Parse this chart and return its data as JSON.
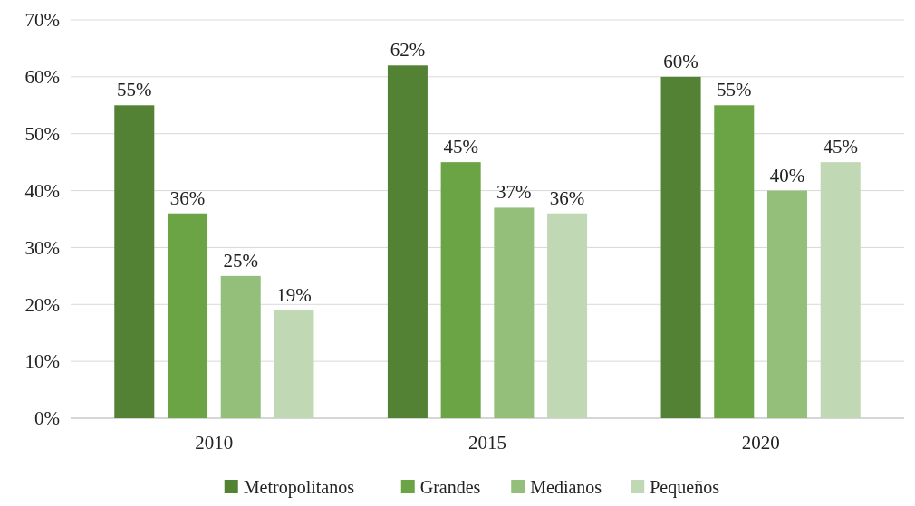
{
  "chart_data": {
    "type": "bar",
    "categories": [
      "2010",
      "2015",
      "2020"
    ],
    "series": [
      {
        "name": "Metropolitanos",
        "color": "#548235",
        "values": [
          55,
          62,
          60
        ],
        "value_labels": [
          "55%",
          "62%",
          "60%"
        ]
      },
      {
        "name": "Grandes",
        "color": "#6aa444",
        "values": [
          36,
          45,
          55
        ],
        "value_labels": [
          "36%",
          "45%",
          "55%"
        ]
      },
      {
        "name": "Medianos",
        "color": "#93bf7a",
        "values": [
          25,
          37,
          40
        ],
        "value_labels": [
          "25%",
          "37%",
          "40%"
        ]
      },
      {
        "name": "Pequeños",
        "color": "#c0d9b4",
        "values": [
          19,
          36,
          45
        ],
        "value_labels": [
          "19%",
          "36%",
          "45%"
        ]
      }
    ],
    "ylim": [
      0,
      70
    ],
    "yticks": [
      {
        "value": 0,
        "label": "0%"
      },
      {
        "value": 10,
        "label": "10%"
      },
      {
        "value": 20,
        "label": "20%"
      },
      {
        "value": 30,
        "label": "30%"
      },
      {
        "value": 40,
        "label": "40%"
      },
      {
        "value": 50,
        "label": "50%"
      },
      {
        "value": 60,
        "label": "60%"
      },
      {
        "value": 70,
        "label": "70%"
      }
    ],
    "grid": "y",
    "legend": "bottom"
  }
}
